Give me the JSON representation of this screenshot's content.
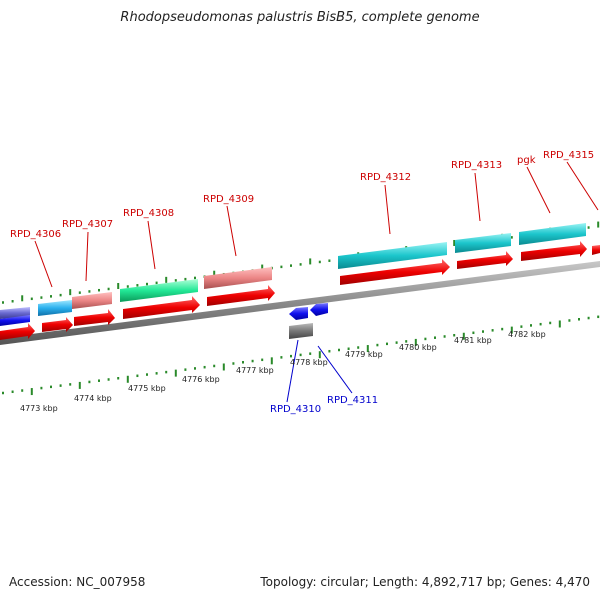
{
  "title": "Rhodopseudomonas palustris BisB5, complete genome",
  "footer": {
    "accession": "Accession: NC_007958",
    "topology": "Topology: circular; Length: 4,892,717 bp; Genes: 4,470"
  },
  "colors": {
    "forward_label": "#cc0000",
    "reverse_label": "#0000cc",
    "backbone": "#808080",
    "tick": "#2a8a2a",
    "cds_forward": "#ee0000"
  },
  "forward_labels": [
    "RPD_4306",
    "RPD_4307",
    "RPD_4308",
    "RPD_4309",
    "RPD_4312",
    "RPD_4313",
    "pgk",
    "RPD_4315"
  ],
  "reverse_labels": [
    "RPD_4310",
    "RPD_4311"
  ],
  "kbp_labels": [
    "4773 kbp",
    "4774 kbp",
    "4775 kbp",
    "4776 kbp",
    "4777 kbp",
    "4778 kbp",
    "4779 kbp",
    "4780 kbp",
    "4781 kbp",
    "4782 kbp"
  ]
}
